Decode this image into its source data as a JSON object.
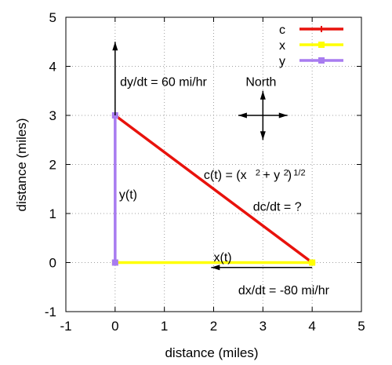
{
  "chart_data": {
    "type": "line",
    "xlabel": "distance (miles)",
    "ylabel": "distance (miles)",
    "xlim": [
      -1,
      5
    ],
    "ylim": [
      -1,
      5
    ],
    "xticks": [
      "-1",
      "0",
      "1",
      "2",
      "3",
      "4",
      "5"
    ],
    "yticks": [
      "-1",
      "0",
      "1",
      "2",
      "3",
      "4",
      "5"
    ],
    "grid": true,
    "legend_position": "top-right",
    "series": [
      {
        "name": "c",
        "color": "#e8120c",
        "marker": "plus",
        "points": [
          [
            0,
            3
          ],
          [
            4,
            0
          ]
        ]
      },
      {
        "name": "x",
        "color": "#ffff00",
        "marker": "square",
        "points": [
          [
            0,
            0
          ],
          [
            4,
            0
          ]
        ]
      },
      {
        "name": "y",
        "color": "#a87cf0",
        "marker": "square",
        "points": [
          [
            0,
            0
          ],
          [
            0,
            3
          ]
        ]
      }
    ],
    "arrows": [
      {
        "name": "dy-arrow",
        "from": [
          0,
          3
        ],
        "to": [
          0,
          4.5
        ]
      },
      {
        "name": "dx-arrow",
        "from": [
          4,
          -0.1
        ],
        "to": [
          1.95,
          -0.1
        ]
      }
    ],
    "compass": {
      "center": [
        3,
        3
      ],
      "half_x": 0.5,
      "half_y": 0.5
    },
    "annotations": {
      "dydt": {
        "text": "dy/dt = 60 mi/hr",
        "at": [
          0.1,
          3.7
        ]
      },
      "north": {
        "text": "North",
        "at": [
          2.65,
          3.7
        ]
      },
      "ct_main": {
        "text": "c(t) = (x",
        "at": [
          1.8,
          1.8
        ]
      },
      "ct_exp1": {
        "text": "2",
        "at": [
          2.85,
          1.87
        ]
      },
      "ct_mid": {
        "text": " + y",
        "at": [
          2.93,
          1.8
        ]
      },
      "ct_exp2": {
        "text": "2",
        "at": [
          3.42,
          1.87
        ]
      },
      "ct_close": {
        "text": ")",
        "at": [
          3.5,
          1.8
        ]
      },
      "ct_exp3": {
        "text": "1/2",
        "at": [
          3.62,
          1.87
        ]
      },
      "dcdt": {
        "text": "dc/dt = ?",
        "at": [
          2.8,
          1.15
        ]
      },
      "yt": {
        "text": "y(t)",
        "at": [
          0.08,
          1.4
        ]
      },
      "xt": {
        "text": "x(t)",
        "at": [
          2.0,
          0.12
        ]
      },
      "dxdt": {
        "text": "dx/dt = -80 mi/hr",
        "at": [
          2.5,
          -0.55
        ]
      }
    }
  }
}
